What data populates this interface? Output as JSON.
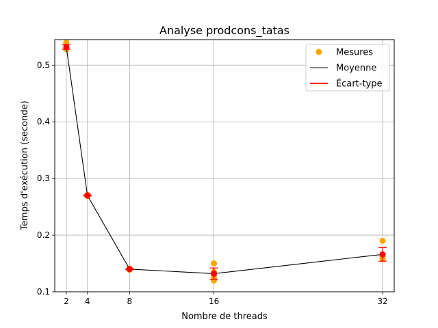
{
  "chart_data": {
    "type": "line",
    "title": "Analyse prodcons_tatas",
    "xlabel": "Nombre de threads",
    "ylabel": "Temps d'exécution (seconde)",
    "xlim": [
      0.9,
      33.1
    ],
    "ylim": [
      0.1,
      0.545
    ],
    "xticks": [
      2,
      4,
      8,
      16,
      32
    ],
    "yticks": [
      0.1,
      0.2,
      0.3,
      0.4,
      0.5
    ],
    "ytick_labels": [
      "0.1",
      "0.2",
      "0.3",
      "0.4",
      "0.5"
    ],
    "grid": true,
    "legend_position": "top-right",
    "legend": [
      {
        "label": "Mesures",
        "kind": "marker",
        "color": "#ffa500"
      },
      {
        "label": "Moyenne",
        "kind": "line",
        "color": "#000000"
      },
      {
        "label": "Écart-type",
        "kind": "errorbar",
        "color": "#ff0000"
      }
    ],
    "measurements": {
      "name": "Mesures",
      "color": "#ffa500",
      "points": [
        [
          2,
          0.54
        ],
        [
          2,
          0.532
        ],
        [
          2,
          0.528
        ],
        [
          2,
          0.53
        ],
        [
          2,
          0.531
        ],
        [
          4,
          0.27
        ],
        [
          4,
          0.271
        ],
        [
          4,
          0.269
        ],
        [
          4,
          0.27
        ],
        [
          4,
          0.27
        ],
        [
          8,
          0.14
        ],
        [
          8,
          0.141
        ],
        [
          8,
          0.139
        ],
        [
          8,
          0.14
        ],
        [
          8,
          0.14
        ],
        [
          16,
          0.15
        ],
        [
          16,
          0.12
        ],
        [
          16,
          0.13
        ],
        [
          16,
          0.125
        ],
        [
          16,
          0.135
        ],
        [
          32,
          0.19
        ],
        [
          32,
          0.16
        ],
        [
          32,
          0.158
        ],
        [
          32,
          0.163
        ],
        [
          32,
          0.16
        ]
      ]
    },
    "mean": {
      "name": "Moyenne",
      "color": "#000000",
      "x": [
        2,
        4,
        8,
        16,
        32
      ],
      "y": [
        0.532,
        0.27,
        0.14,
        0.132,
        0.166
      ]
    },
    "std": {
      "name": "Écart-type",
      "color": "#ff0000",
      "x": [
        2,
        4,
        8,
        16,
        32
      ],
      "y": [
        0.532,
        0.27,
        0.14,
        0.132,
        0.166
      ],
      "err": [
        0.004,
        0.001,
        0.001,
        0.01,
        0.012
      ]
    }
  }
}
